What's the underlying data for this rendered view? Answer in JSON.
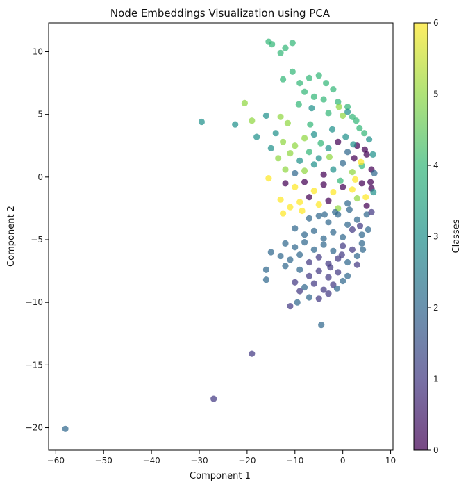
{
  "chart_data": {
    "type": "scatter",
    "title": "Node Embeddings Visualization using PCA",
    "xlabel": "Component 1",
    "ylabel": "Component 2",
    "xlim": [
      -61.5,
      10.5
    ],
    "ylim": [
      -21.8,
      12.3
    ],
    "xticks": [
      -60,
      -50,
      -40,
      -30,
      -20,
      -10,
      0,
      10
    ],
    "yticks": [
      -20,
      -15,
      -10,
      -5,
      0,
      5,
      10
    ],
    "grid": false,
    "marker_alpha": 0.72,
    "colorbar": {
      "label": "Classes",
      "min": 0,
      "max": 6,
      "ticks": [
        0,
        1,
        2,
        3,
        4,
        5,
        6
      ],
      "colormap": "viridis",
      "colors": [
        "#440154",
        "#443a83",
        "#31688e",
        "#21918c",
        "#35b779",
        "#90d743",
        "#fde725"
      ]
    },
    "points": [
      {
        "x": -58,
        "y": -20.1,
        "c": 2
      },
      {
        "x": -27,
        "y": -17.7,
        "c": 1
      },
      {
        "x": -19,
        "y": -14.1,
        "c": 1
      },
      {
        "x": -29.5,
        "y": 4.4,
        "c": 3
      },
      {
        "x": -22.5,
        "y": 4.2,
        "c": 3
      },
      {
        "x": -20.5,
        "y": 5.9,
        "c": 5
      },
      {
        "x": -19,
        "y": 4.5,
        "c": 5
      },
      {
        "x": -18,
        "y": 3.2,
        "c": 3
      },
      {
        "x": -16,
        "y": 4.9,
        "c": 3
      },
      {
        "x": -15.5,
        "y": 10.8,
        "c": 4
      },
      {
        "x": -14.8,
        "y": 10.6,
        "c": 4
      },
      {
        "x": -13,
        "y": 9.9,
        "c": 4
      },
      {
        "x": -12,
        "y": 10.3,
        "c": 4
      },
      {
        "x": -10.5,
        "y": 10.7,
        "c": 4
      },
      {
        "x": -12.5,
        "y": 7.8,
        "c": 4
      },
      {
        "x": -10.5,
        "y": 8.4,
        "c": 4
      },
      {
        "x": -9,
        "y": 7.5,
        "c": 4
      },
      {
        "x": -7,
        "y": 7.9,
        "c": 4
      },
      {
        "x": -5,
        "y": 8.1,
        "c": 4
      },
      {
        "x": -3.5,
        "y": 7.5,
        "c": 4
      },
      {
        "x": -2,
        "y": 7.0,
        "c": 4
      },
      {
        "x": -8,
        "y": 6.8,
        "c": 4
      },
      {
        "x": -6,
        "y": 6.4,
        "c": 4
      },
      {
        "x": -4,
        "y": 6.2,
        "c": 4
      },
      {
        "x": -1,
        "y": 6.0,
        "c": 4
      },
      {
        "x": 1,
        "y": 5.6,
        "c": 4
      },
      {
        "x": -6.5,
        "y": 5.5,
        "c": 3
      },
      {
        "x": -3,
        "y": 5.1,
        "c": 4
      },
      {
        "x": 0,
        "y": 4.9,
        "c": 5
      },
      {
        "x": 2,
        "y": 4.8,
        "c": 4
      },
      {
        "x": 3.5,
        "y": 3.9,
        "c": 4
      },
      {
        "x": -13,
        "y": 4.8,
        "c": 5
      },
      {
        "x": -11.5,
        "y": 4.3,
        "c": 5
      },
      {
        "x": -14,
        "y": 3.5,
        "c": 3
      },
      {
        "x": -12.5,
        "y": 2.8,
        "c": 5
      },
      {
        "x": -10,
        "y": 2.5,
        "c": 5
      },
      {
        "x": -8,
        "y": 3.1,
        "c": 5
      },
      {
        "x": -6,
        "y": 3.4,
        "c": 3
      },
      {
        "x": -15,
        "y": 2.3,
        "c": 3
      },
      {
        "x": -13.5,
        "y": 1.5,
        "c": 5
      },
      {
        "x": -11,
        "y": 1.9,
        "c": 5
      },
      {
        "x": -9,
        "y": 1.3,
        "c": 3
      },
      {
        "x": -7,
        "y": 2.0,
        "c": 4
      },
      {
        "x": -5,
        "y": 1.5,
        "c": 3
      },
      {
        "x": -3,
        "y": 2.3,
        "c": 3
      },
      {
        "x": -1,
        "y": 2.8,
        "c": 0
      },
      {
        "x": 1,
        "y": 2.0,
        "c": 2
      },
      {
        "x": 3,
        "y": 2.5,
        "c": 0
      },
      {
        "x": 5,
        "y": 1.8,
        "c": 0
      },
      {
        "x": 6,
        "y": 0.6,
        "c": 0
      },
      {
        "x": -12,
        "y": 0.6,
        "c": 5
      },
      {
        "x": -10,
        "y": 0.3,
        "c": 2
      },
      {
        "x": -8,
        "y": 0.5,
        "c": 5
      },
      {
        "x": -6,
        "y": 1.0,
        "c": 3
      },
      {
        "x": -4,
        "y": 0.2,
        "c": 0
      },
      {
        "x": -2,
        "y": 0.6,
        "c": 3
      },
      {
        "x": 0,
        "y": 1.1,
        "c": 2
      },
      {
        "x": 2,
        "y": 0.4,
        "c": 5
      },
      {
        "x": 4,
        "y": 0.9,
        "c": 4
      },
      {
        "x": -15.5,
        "y": -0.1,
        "c": 6
      },
      {
        "x": -12,
        "y": -0.5,
        "c": 0
      },
      {
        "x": -10,
        "y": -0.8,
        "c": 6
      },
      {
        "x": -8,
        "y": -0.4,
        "c": 0
      },
      {
        "x": -6,
        "y": -1.1,
        "c": 6
      },
      {
        "x": -4,
        "y": -0.6,
        "c": 0
      },
      {
        "x": -2,
        "y": -1.2,
        "c": 6
      },
      {
        "x": 0,
        "y": -0.8,
        "c": 0
      },
      {
        "x": 2,
        "y": -1.0,
        "c": 6
      },
      {
        "x": 4,
        "y": -0.5,
        "c": 0
      },
      {
        "x": 6,
        "y": -0.9,
        "c": 0
      },
      {
        "x": -13,
        "y": -1.8,
        "c": 6
      },
      {
        "x": -11,
        "y": -2.4,
        "c": 6
      },
      {
        "x": -9,
        "y": -2.0,
        "c": 6
      },
      {
        "x": -7,
        "y": -1.6,
        "c": 0
      },
      {
        "x": -5,
        "y": -2.2,
        "c": 6
      },
      {
        "x": -3,
        "y": -1.9,
        "c": 0
      },
      {
        "x": -1,
        "y": -2.5,
        "c": 5
      },
      {
        "x": 1,
        "y": -2.1,
        "c": 2
      },
      {
        "x": 3,
        "y": -1.7,
        "c": 5
      },
      {
        "x": 5,
        "y": -2.3,
        "c": 0
      },
      {
        "x": -8.5,
        "y": -2.7,
        "c": 6
      },
      {
        "x": -12.5,
        "y": -2.9,
        "c": 6
      },
      {
        "x": -7,
        "y": -3.3,
        "c": 2
      },
      {
        "x": -5,
        "y": -3.1,
        "c": 2
      },
      {
        "x": -3,
        "y": -3.6,
        "c": 2
      },
      {
        "x": -1,
        "y": -3.0,
        "c": 2
      },
      {
        "x": 1,
        "y": -3.8,
        "c": 2
      },
      {
        "x": 3,
        "y": -3.4,
        "c": 2
      },
      {
        "x": 5,
        "y": -3.0,
        "c": 2
      },
      {
        "x": -10,
        "y": -4.1,
        "c": 2
      },
      {
        "x": -8,
        "y": -4.6,
        "c": 2
      },
      {
        "x": -6,
        "y": -4.3,
        "c": 2
      },
      {
        "x": -4,
        "y": -4.9,
        "c": 2
      },
      {
        "x": -2,
        "y": -4.4,
        "c": 2
      },
      {
        "x": 0,
        "y": -4.8,
        "c": 2
      },
      {
        "x": 2,
        "y": -4.2,
        "c": 1
      },
      {
        "x": 4,
        "y": -4.6,
        "c": 2
      },
      {
        "x": -12,
        "y": -5.3,
        "c": 2
      },
      {
        "x": -10,
        "y": -5.6,
        "c": 2
      },
      {
        "x": -8,
        "y": -5.2,
        "c": 2
      },
      {
        "x": -6,
        "y": -5.8,
        "c": 2
      },
      {
        "x": -4,
        "y": -5.4,
        "c": 2
      },
      {
        "x": -2,
        "y": -5.9,
        "c": 2
      },
      {
        "x": 0,
        "y": -5.5,
        "c": 1
      },
      {
        "x": 2,
        "y": -5.8,
        "c": 1
      },
      {
        "x": 4,
        "y": -5.3,
        "c": 2
      },
      {
        "x": -15,
        "y": -6.0,
        "c": 2
      },
      {
        "x": -13,
        "y": -6.3,
        "c": 2
      },
      {
        "x": -11,
        "y": -6.6,
        "c": 2
      },
      {
        "x": -9,
        "y": -6.2,
        "c": 2
      },
      {
        "x": -7,
        "y": -6.8,
        "c": 1
      },
      {
        "x": -5,
        "y": -6.4,
        "c": 1
      },
      {
        "x": -3,
        "y": -6.9,
        "c": 1
      },
      {
        "x": -1,
        "y": -6.5,
        "c": 1
      },
      {
        "x": 1,
        "y": -6.8,
        "c": 2
      },
      {
        "x": 3,
        "y": -6.3,
        "c": 2
      },
      {
        "x": -16,
        "y": -7.4,
        "c": 2
      },
      {
        "x": -12,
        "y": -7.1,
        "c": 2
      },
      {
        "x": -9,
        "y": -7.4,
        "c": 2
      },
      {
        "x": -7,
        "y": -7.9,
        "c": 1
      },
      {
        "x": -5,
        "y": -7.5,
        "c": 1
      },
      {
        "x": -3,
        "y": -8.0,
        "c": 1
      },
      {
        "x": -1,
        "y": -7.6,
        "c": 1
      },
      {
        "x": 1,
        "y": -7.9,
        "c": 2
      },
      {
        "x": -16,
        "y": -8.2,
        "c": 2
      },
      {
        "x": -10,
        "y": -8.4,
        "c": 1
      },
      {
        "x": -8,
        "y": -8.8,
        "c": 2
      },
      {
        "x": -6,
        "y": -8.5,
        "c": 1
      },
      {
        "x": -4,
        "y": -9.0,
        "c": 1
      },
      {
        "x": -2,
        "y": -8.6,
        "c": 1
      },
      {
        "x": 0,
        "y": -8.3,
        "c": 2
      },
      {
        "x": -9,
        "y": -9.1,
        "c": 1
      },
      {
        "x": -7,
        "y": -9.6,
        "c": 2
      },
      {
        "x": -5,
        "y": -9.7,
        "c": 1
      },
      {
        "x": -3,
        "y": -9.3,
        "c": 1
      },
      {
        "x": -11,
        "y": -10.3,
        "c": 1
      },
      {
        "x": -9.5,
        "y": -10.0,
        "c": 2
      },
      {
        "x": -4.5,
        "y": -11.8,
        "c": 2
      },
      {
        "x": 5.5,
        "y": 3.0,
        "c": 3
      },
      {
        "x": 6.3,
        "y": 1.8,
        "c": 3
      },
      {
        "x": 6.6,
        "y": 0.3,
        "c": 2
      },
      {
        "x": 6.4,
        "y": -1.2,
        "c": 3
      },
      {
        "x": 6.0,
        "y": -2.8,
        "c": 1
      },
      {
        "x": 5.3,
        "y": -4.2,
        "c": 2
      },
      {
        "x": 4.2,
        "y": -5.8,
        "c": 2
      },
      {
        "x": 3.0,
        "y": -7.0,
        "c": 1
      },
      {
        "x": 4.5,
        "y": 3.5,
        "c": 4
      },
      {
        "x": 2.8,
        "y": 4.5,
        "c": 4
      },
      {
        "x": 1.0,
        "y": 5.2,
        "c": 3
      },
      {
        "x": -0.8,
        "y": 5.6,
        "c": 5
      },
      {
        "x": 3.8,
        "y": 1.2,
        "c": 6
      },
      {
        "x": 2.6,
        "y": -0.2,
        "c": 6
      },
      {
        "x": 4.8,
        "y": -1.6,
        "c": 6
      },
      {
        "x": -0.5,
        "y": -0.3,
        "c": 4
      },
      {
        "x": -2.8,
        "y": 1.6,
        "c": 5
      },
      {
        "x": -4.6,
        "y": 2.7,
        "c": 4
      },
      {
        "x": -6.8,
        "y": 4.2,
        "c": 4
      },
      {
        "x": -9.2,
        "y": 5.8,
        "c": 4
      },
      {
        "x": -2.2,
        "y": 3.8,
        "c": 3
      },
      {
        "x": 0.6,
        "y": 3.2,
        "c": 3
      },
      {
        "x": 2.2,
        "y": 2.6,
        "c": 3
      },
      {
        "x": -1.6,
        "y": -2.8,
        "c": 2
      },
      {
        "x": -3.8,
        "y": -3.0,
        "c": 2
      },
      {
        "x": 1.4,
        "y": -2.6,
        "c": 2
      },
      {
        "x": 3.6,
        "y": -3.9,
        "c": 1
      },
      {
        "x": -0.2,
        "y": -6.2,
        "c": 1
      },
      {
        "x": -2.6,
        "y": -7.2,
        "c": 1
      },
      {
        "x": -1.2,
        "y": -8.9,
        "c": 2
      },
      {
        "x": 5.8,
        "y": -0.4,
        "c": 0
      },
      {
        "x": 4.6,
        "y": 2.2,
        "c": 0
      },
      {
        "x": 2.4,
        "y": 1.5,
        "c": 0
      }
    ]
  }
}
